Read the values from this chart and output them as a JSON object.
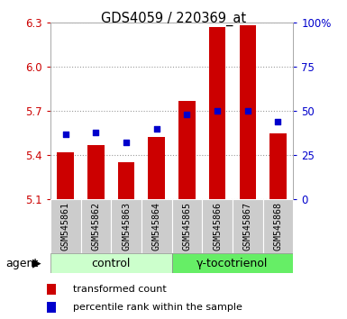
{
  "title": "GDS4059 / 220369_at",
  "samples": [
    "GSM545861",
    "GSM545862",
    "GSM545863",
    "GSM545864",
    "GSM545865",
    "GSM545866",
    "GSM545867",
    "GSM545868"
  ],
  "bar_values": [
    5.42,
    5.47,
    5.35,
    5.52,
    5.77,
    6.27,
    6.28,
    5.55
  ],
  "dot_values": [
    37,
    38,
    32,
    40,
    48,
    50,
    50,
    44
  ],
  "bar_bottom": 5.1,
  "ylim": [
    5.1,
    6.3
  ],
  "ylim_right": [
    0,
    100
  ],
  "yticks_left": [
    5.1,
    5.4,
    5.7,
    6.0,
    6.3
  ],
  "yticks_right": [
    0,
    25,
    50,
    75,
    100
  ],
  "bar_color": "#cc0000",
  "dot_color": "#0000cc",
  "control_label": "control",
  "treatment_label": "γ-tocotrienol",
  "agent_label": "agent",
  "legend_bar": "transformed count",
  "legend_dot": "percentile rank within the sample",
  "control_bg": "#ccffcc",
  "treatment_bg": "#66ee66",
  "xticklabel_bg": "#cccccc",
  "grid_color": "#000000",
  "grid_alpha": 0.4
}
